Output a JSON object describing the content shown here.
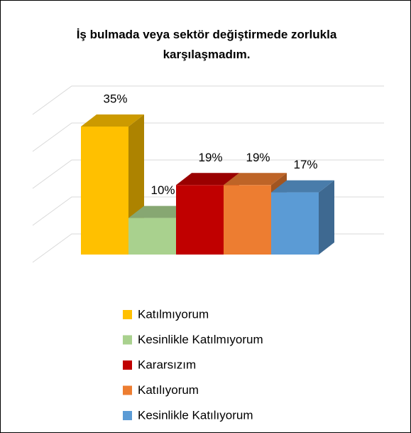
{
  "chart_data": {
    "type": "bar3d",
    "title": "İş bulmada veya sektör değiştirmede zorlukla karşılaşmadım.",
    "categories": [
      "Katılmıyorum",
      "Kesinlikle Katılmıyorum",
      "Kararsızım",
      "Katılıyorum",
      "Kesinlikle Katılıyorum"
    ],
    "values": [
      35,
      10,
      19,
      19,
      17
    ],
    "value_labels": [
      "35%",
      "10%",
      "19%",
      "19%",
      "17%"
    ],
    "colors": [
      "#FFC000",
      "#A9D18E",
      "#C00000",
      "#ED7D31",
      "#5B9BD5"
    ],
    "ylim": [
      0,
      40
    ],
    "yticks": [
      0,
      10,
      20,
      30,
      40
    ],
    "grid": true,
    "legend": "bottom"
  }
}
